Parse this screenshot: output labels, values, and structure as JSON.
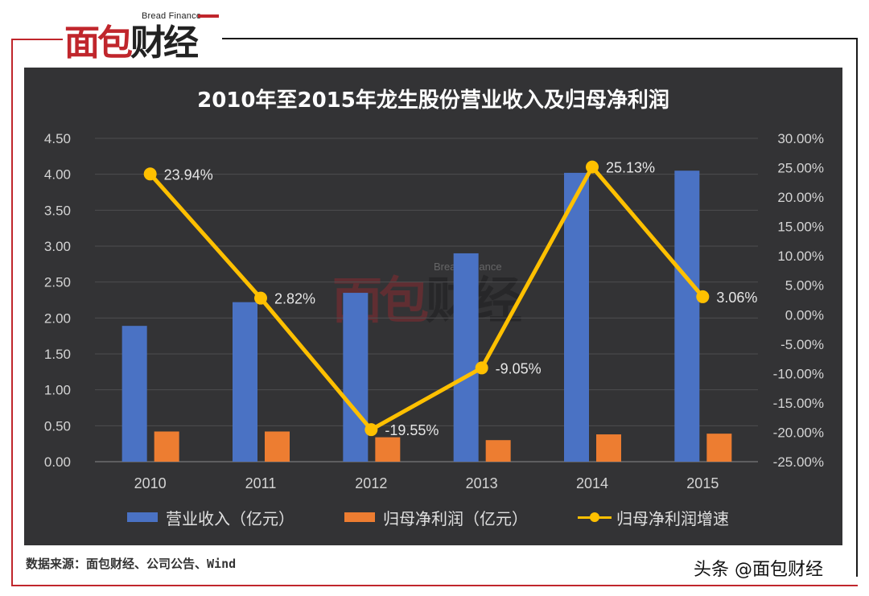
{
  "brand": {
    "english": "Bread Finance",
    "chinese_red": "面包",
    "chinese_dark": "财经"
  },
  "source_text": "数据来源：面包财经、公司公告、Wind",
  "credit_text": "头条 @面包财经",
  "colors": {
    "revenue": "#4a72c4",
    "profit": "#ed7d31",
    "growth": "#ffc000",
    "panel": "#333335",
    "brand_red": "#c0262c"
  },
  "chart_data": {
    "type": "bar",
    "title": "2010年至2015年龙生股份营业收入及归母净利润",
    "categories": [
      "2010",
      "2011",
      "2012",
      "2013",
      "2014",
      "2015"
    ],
    "y_left": {
      "ylim": [
        0,
        4.5
      ],
      "ticks": [
        "0.00",
        "0.50",
        "1.00",
        "1.50",
        "2.00",
        "2.50",
        "3.00",
        "3.50",
        "4.00",
        "4.50"
      ]
    },
    "y_right": {
      "ylim": [
        -25,
        30
      ],
      "ticks": [
        "-25.00%",
        "-20.00%",
        "-15.00%",
        "-10.00%",
        "-5.00%",
        "0.00%",
        "5.00%",
        "10.00%",
        "15.00%",
        "20.00%",
        "25.00%",
        "30.00%"
      ]
    },
    "series": [
      {
        "name": "营业收入（亿元）",
        "type": "bar",
        "axis": "left",
        "values": [
          1.89,
          2.22,
          2.35,
          2.9,
          4.02,
          4.05
        ]
      },
      {
        "name": "归母净利润（亿元）",
        "type": "bar",
        "axis": "left",
        "values": [
          0.42,
          0.42,
          0.34,
          0.3,
          0.38,
          0.39
        ]
      },
      {
        "name": "归母净利润增速",
        "type": "line",
        "axis": "right",
        "values": [
          23.94,
          2.82,
          -19.55,
          -9.05,
          25.13,
          3.06
        ],
        "labels": [
          "23.94%",
          "2.82%",
          "-19.55%",
          "-9.05%",
          "25.13%",
          "3.06%"
        ]
      }
    ],
    "legend_position": "bottom",
    "grid": true
  }
}
